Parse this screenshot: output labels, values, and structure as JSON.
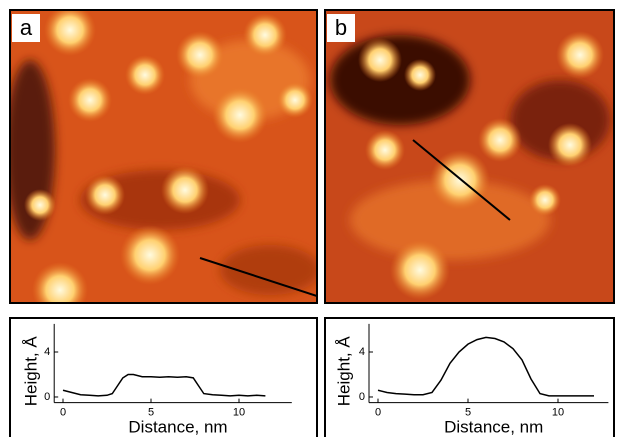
{
  "panels": [
    {
      "label": "a"
    },
    {
      "label": "b"
    }
  ],
  "chart_data": [
    {
      "type": "line",
      "xlabel": "Distance, nm",
      "ylabel": "Height, Å",
      "x": [
        0,
        0.5,
        1,
        1.5,
        2,
        2.5,
        2.8,
        3.1,
        3.4,
        3.7,
        4,
        4.5,
        5,
        5.5,
        6,
        6.5,
        7,
        7.4,
        7.7,
        8,
        8.5,
        9,
        9.5,
        10,
        10.5,
        11,
        11.5
      ],
      "series": [
        {
          "color": "#000000",
          "values": [
            0.6,
            0.4,
            0.2,
            0.15,
            0.1,
            0.15,
            0.3,
            1.0,
            1.7,
            2.0,
            2.0,
            1.8,
            1.8,
            1.75,
            1.8,
            1.75,
            1.8,
            1.7,
            1.0,
            0.3,
            0.2,
            0.15,
            0.1,
            0.15,
            0.1,
            0.15,
            0.1
          ]
        }
      ],
      "xlim": [
        -0.5,
        13
      ],
      "ylim": [
        -0.5,
        6.5
      ],
      "xticks": [
        0,
        5,
        10
      ],
      "yticks": [
        0,
        4
      ]
    },
    {
      "type": "line",
      "xlabel": "Distance, nm",
      "ylabel": "Height, Å",
      "x": [
        0,
        0.5,
        1,
        1.5,
        2,
        2.5,
        3,
        3.5,
        4,
        4.5,
        5,
        5.5,
        6,
        6.5,
        7,
        7.5,
        8,
        8.5,
        9,
        9.5,
        10,
        11,
        12
      ],
      "series": [
        {
          "color": "#000000",
          "values": [
            0.6,
            0.4,
            0.3,
            0.25,
            0.2,
            0.2,
            0.4,
            1.5,
            3.0,
            4.0,
            4.7,
            5.1,
            5.3,
            5.2,
            4.9,
            4.3,
            3.3,
            1.6,
            0.3,
            0.1,
            0.1,
            0.1,
            0.1
          ]
        }
      ],
      "xlim": [
        -0.5,
        12.8
      ],
      "ylim": [
        -0.5,
        6.5
      ],
      "xticks": [
        0,
        5,
        10
      ],
      "yticks": [
        0,
        4
      ]
    }
  ]
}
